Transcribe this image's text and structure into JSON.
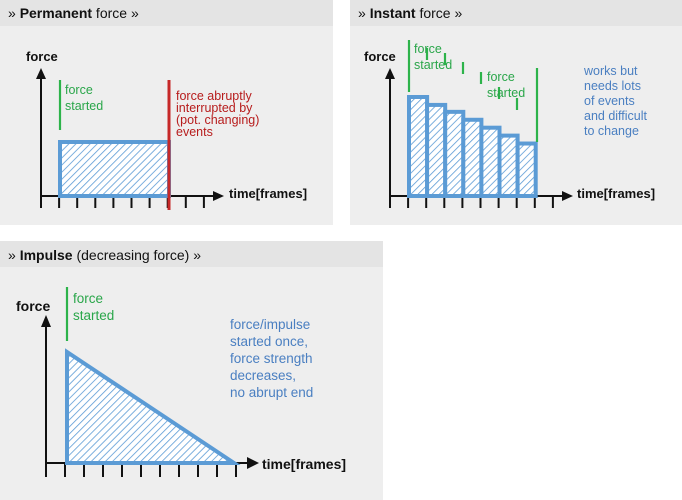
{
  "axes": {
    "y_label": "force",
    "x_label": "time[frames]"
  },
  "colors": {
    "bar": "#5b9bd5",
    "marker": "#2db34a",
    "interrupt": "#c62828",
    "note": "#4a7fc1"
  },
  "panels": {
    "permanent": {
      "title_prefix": "» ",
      "title_bold": "Permanent",
      "title_rest": " force »",
      "marker_label": [
        "force",
        "started"
      ],
      "interrupt_label": [
        "force abruptly",
        "interrupted by",
        "(pot. changing)",
        "events"
      ]
    },
    "instant": {
      "title_prefix": "» ",
      "title_bold": "Instant",
      "title_rest": " force »",
      "marker_labels": [
        [
          "force",
          "started"
        ],
        [
          "force",
          "started"
        ]
      ],
      "note": [
        "works but",
        "needs lots",
        "of events",
        "and difficult",
        "to change"
      ],
      "bar_levels": [
        1.0,
        0.92,
        0.85,
        0.77,
        0.69,
        0.61,
        0.53
      ]
    },
    "impulse": {
      "title_prefix": "» ",
      "title_bold": "Impulse",
      "title_rest": " (decreasing force) »",
      "marker_label": [
        "force",
        "started"
      ],
      "note": [
        "force/impulse",
        "started once,",
        "force strength",
        "decreases,",
        "no abrupt end"
      ]
    }
  }
}
